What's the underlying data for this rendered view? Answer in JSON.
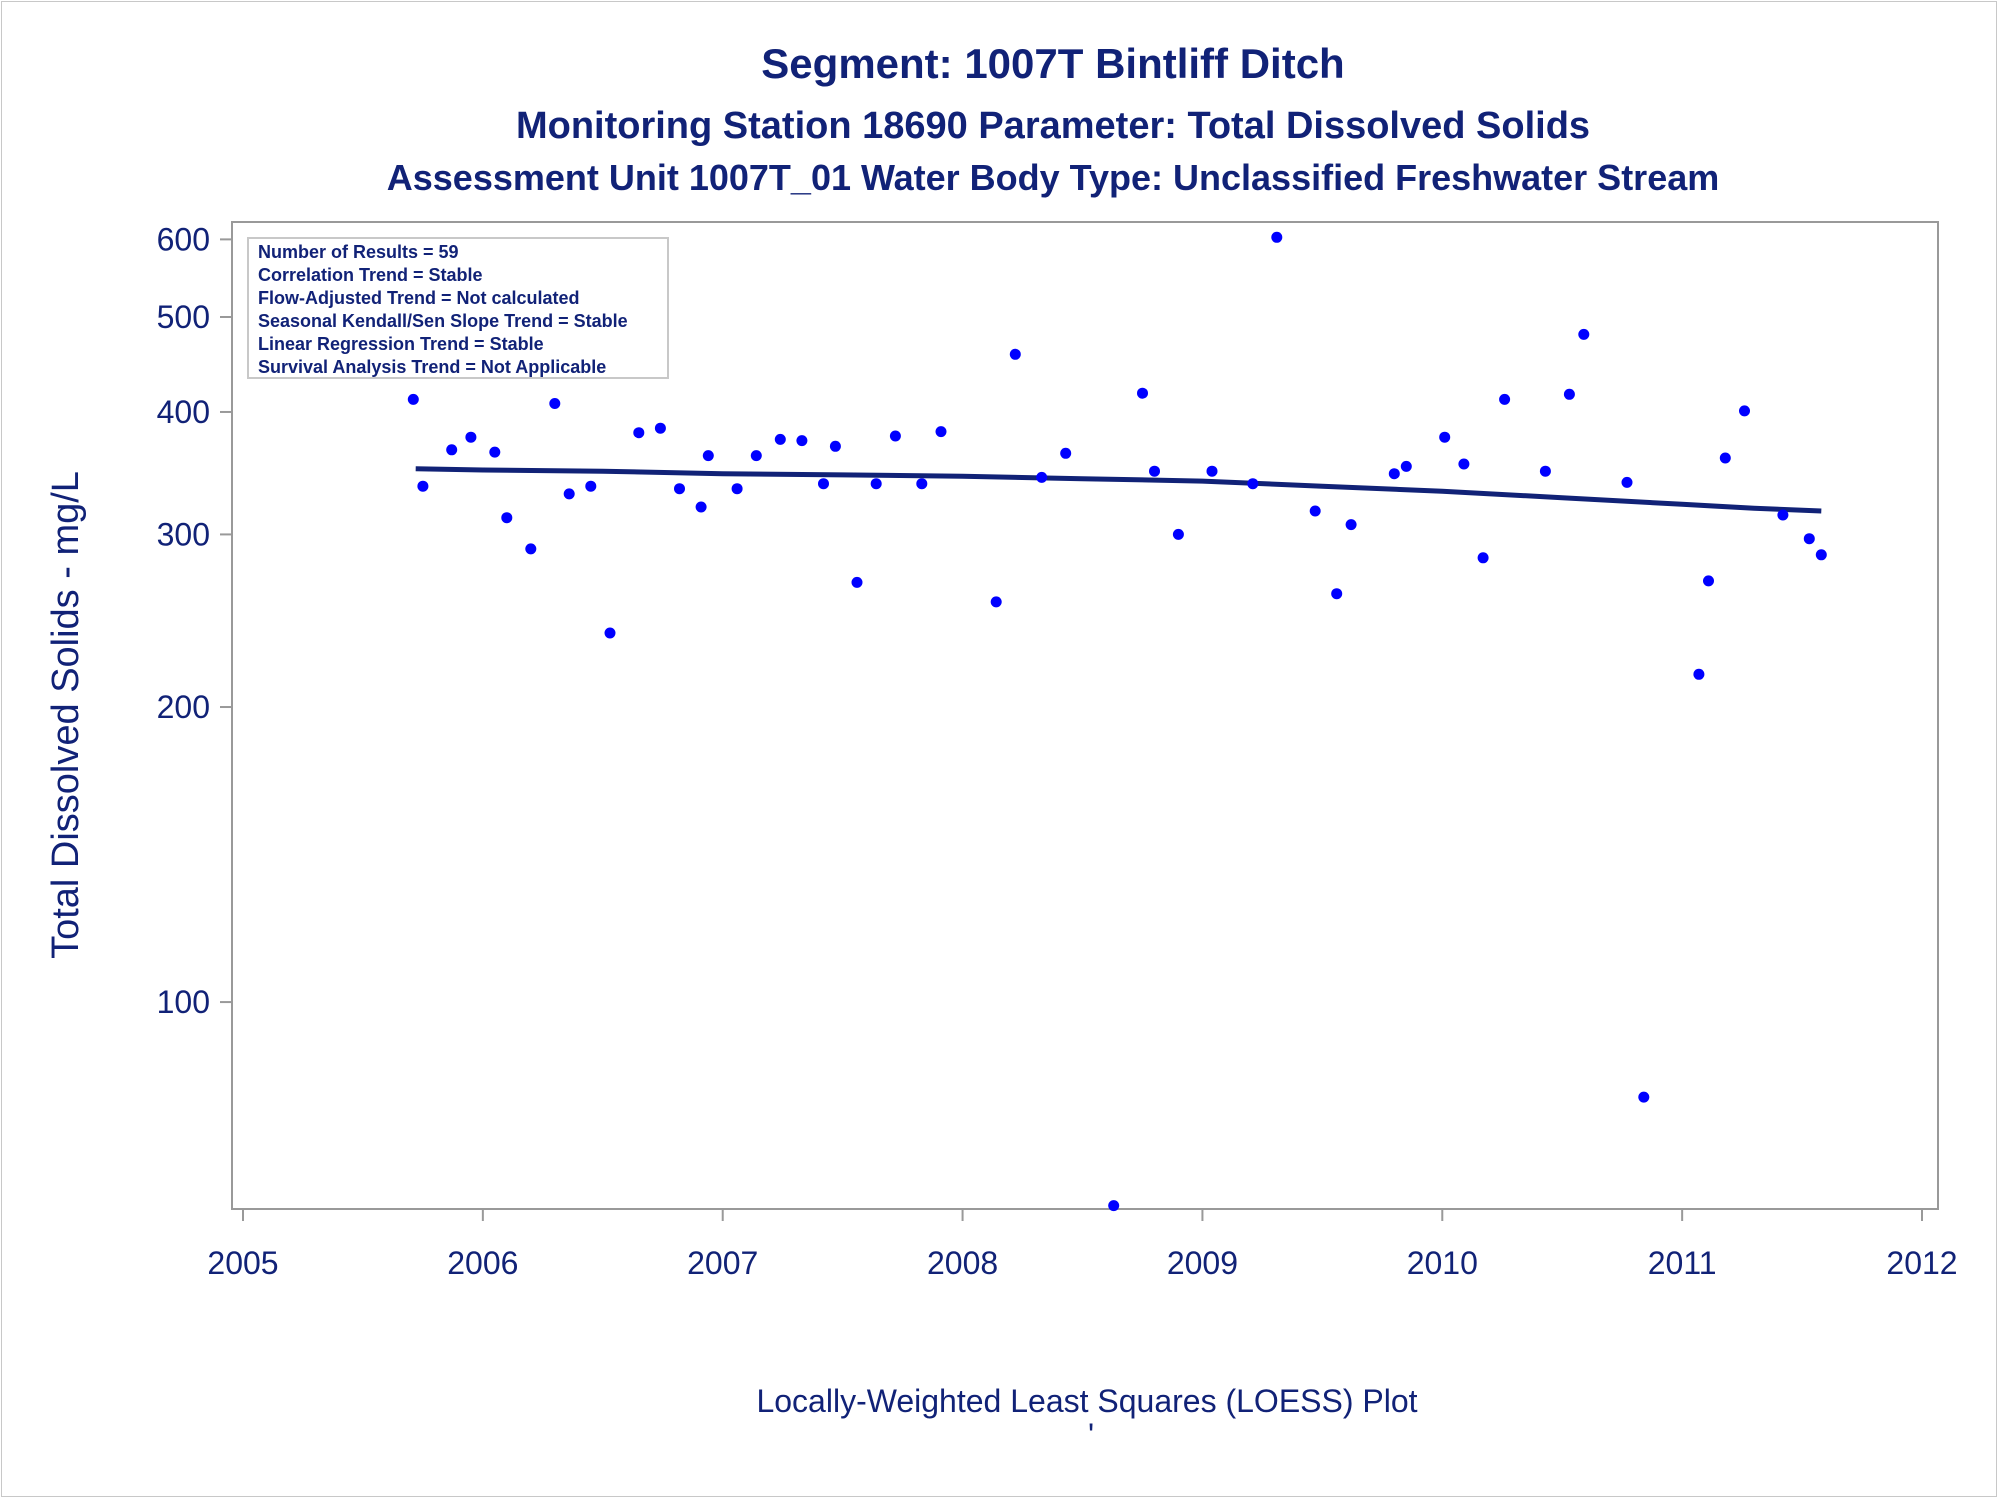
{
  "titles": [
    "Segment: 1007T  Bintliff Ditch",
    "Monitoring Station 18690 Parameter: Total Dissolved Solids",
    "Assessment Unit 1007T_01   Water Body Type: Unclassified Freshwater Stream"
  ],
  "footnote": "Locally-Weighted Least Squares (LOESS) Plot",
  "footnote_mark": "'",
  "inset_lines": [
    "Number of Results = 59",
    "Correlation Trend = Stable",
    "Flow-Adjusted Trend = Not calculated",
    "Seasonal Kendall/Sen Slope Trend = Stable",
    "Linear Regression Trend = Stable",
    "Survival Analysis Trend = Not Applicable"
  ],
  "colors": {
    "text": "#112277",
    "points": "#0000ff",
    "trend_line": "#112277",
    "frame": "#999999"
  },
  "chart_data": {
    "type": "scatter",
    "title": "Segment: 1007T  Bintliff Ditch",
    "xlabel": "",
    "ylabel": "Total Dissolved Solids - mg/L",
    "x_ticks": [
      2005,
      2006,
      2007,
      2008,
      2009,
      2010,
      2011,
      2012
    ],
    "y_ticks": [
      100,
      200,
      300,
      400,
      500,
      600
    ],
    "xlim": [
      2005,
      2012
    ],
    "ylim": [
      61.5,
      625
    ],
    "y_scale": "log",
    "grid": false,
    "legend": "top-left inset box",
    "points": [
      [
        2005.71,
        412
      ],
      [
        2005.75,
        336
      ],
      [
        2005.87,
        366
      ],
      [
        2005.95,
        377
      ],
      [
        2006.05,
        364
      ],
      [
        2006.1,
        312
      ],
      [
        2006.2,
        290
      ],
      [
        2006.3,
        408
      ],
      [
        2006.36,
        330
      ],
      [
        2006.45,
        336
      ],
      [
        2006.53,
        238
      ],
      [
        2006.65,
        381
      ],
      [
        2006.74,
        385
      ],
      [
        2006.82,
        334
      ],
      [
        2006.91,
        320
      ],
      [
        2006.94,
        361
      ],
      [
        2007.06,
        334
      ],
      [
        2007.14,
        361
      ],
      [
        2007.24,
        375
      ],
      [
        2007.33,
        374
      ],
      [
        2007.42,
        338
      ],
      [
        2007.47,
        369
      ],
      [
        2007.56,
        268
      ],
      [
        2007.64,
        338
      ],
      [
        2007.72,
        378
      ],
      [
        2007.83,
        338
      ],
      [
        2007.91,
        382
      ],
      [
        2008.14,
        256
      ],
      [
        2008.22,
        458
      ],
      [
        2008.33,
        343
      ],
      [
        2008.43,
        363
      ],
      [
        2008.63,
        62
      ],
      [
        2008.75,
        418
      ],
      [
        2008.8,
        348
      ],
      [
        2008.9,
        300
      ],
      [
        2009.04,
        348
      ],
      [
        2009.21,
        338
      ],
      [
        2009.31,
        603
      ],
      [
        2009.47,
        317
      ],
      [
        2009.56,
        261
      ],
      [
        2009.62,
        307
      ],
      [
        2009.8,
        346
      ],
      [
        2009.85,
        352
      ],
      [
        2010.01,
        377
      ],
      [
        2010.09,
        354
      ],
      [
        2010.17,
        284
      ],
      [
        2010.26,
        412
      ],
      [
        2010.43,
        348
      ],
      [
        2010.53,
        417
      ],
      [
        2010.59,
        480
      ],
      [
        2010.77,
        339
      ],
      [
        2010.84,
        80
      ],
      [
        2011.07,
        216
      ],
      [
        2011.11,
        269
      ],
      [
        2011.18,
        359
      ],
      [
        2011.26,
        401
      ],
      [
        2011.42,
        314
      ],
      [
        2011.53,
        297
      ],
      [
        2011.58,
        286
      ]
    ],
    "trend_line": [
      [
        2005.72,
        350
      ],
      [
        2006.0,
        349
      ],
      [
        2006.5,
        348
      ],
      [
        2007.0,
        346
      ],
      [
        2007.5,
        345
      ],
      [
        2008.0,
        344
      ],
      [
        2008.5,
        342
      ],
      [
        2009.0,
        340
      ],
      [
        2009.5,
        336
      ],
      [
        2010.0,
        332
      ],
      [
        2010.5,
        327
      ],
      [
        2011.0,
        322
      ],
      [
        2011.3,
        319
      ],
      [
        2011.58,
        317
      ]
    ]
  }
}
